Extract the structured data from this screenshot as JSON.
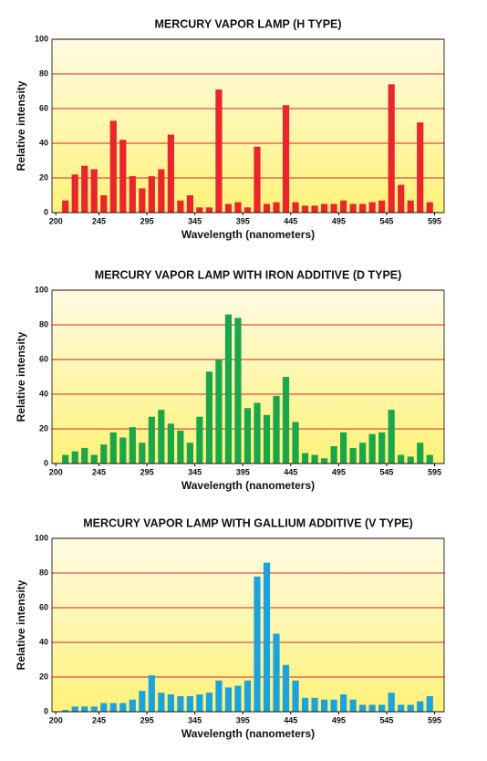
{
  "chart_data": [
    {
      "type": "bar",
      "title": "MERCURY VAPOR LAMP (H TYPE)",
      "xlabel": "Wavelength  (nanometers)",
      "ylabel": "Relative intensity",
      "color": "#e8262b",
      "grid": true,
      "x": [
        210,
        220,
        230,
        240,
        250,
        260,
        270,
        280,
        290,
        300,
        310,
        320,
        330,
        340,
        350,
        360,
        370,
        380,
        390,
        400,
        410,
        420,
        430,
        440,
        450,
        460,
        470,
        480,
        490,
        500,
        510,
        520,
        530,
        540,
        550,
        560,
        570,
        580,
        590
      ],
      "values": [
        7,
        22,
        27,
        25,
        10,
        53,
        42,
        21,
        14,
        21,
        25,
        45,
        7,
        10,
        3,
        3,
        71,
        5,
        6,
        3,
        38,
        5,
        6,
        62,
        6,
        4,
        4,
        5,
        5,
        7,
        5,
        5,
        6,
        7,
        74,
        16,
        7,
        52,
        6
      ],
      "xlim": [
        196,
        605
      ],
      "xticks": [
        200,
        245,
        295,
        345,
        395,
        445,
        495,
        545,
        595
      ],
      "ylim": [
        0,
        100
      ],
      "yticks": [
        0,
        20,
        40,
        60,
        80,
        100
      ]
    },
    {
      "type": "bar",
      "title": "MERCURY VAPOR LAMP WITH IRON ADDITIVE (D TYPE)",
      "xlabel": "Wavelength  (nanometers)",
      "ylabel": "Relative intensity",
      "color": "#1aa64a",
      "grid": true,
      "x": [
        210,
        220,
        230,
        240,
        250,
        260,
        270,
        280,
        290,
        300,
        310,
        320,
        330,
        340,
        350,
        360,
        370,
        380,
        390,
        400,
        410,
        420,
        430,
        440,
        450,
        460,
        470,
        480,
        490,
        500,
        510,
        520,
        530,
        540,
        550,
        560,
        570,
        580,
        590
      ],
      "values": [
        5,
        7,
        9,
        5,
        11,
        18,
        15,
        21,
        12,
        27,
        31,
        23,
        19,
        12,
        27,
        53,
        60,
        86,
        84,
        32,
        35,
        28,
        39,
        50,
        24,
        6,
        5,
        3,
        10,
        18,
        9,
        12,
        17,
        18,
        31,
        5,
        4,
        12,
        5
      ],
      "xlim": [
        196,
        605
      ],
      "xticks": [
        200,
        245,
        295,
        345,
        395,
        445,
        495,
        545,
        595
      ],
      "ylim": [
        0,
        100
      ],
      "yticks": [
        0,
        20,
        40,
        60,
        80,
        100
      ]
    },
    {
      "type": "bar",
      "title": "MERCURY VAPOR LAMP WITH GALLIUM ADDITIVE (V TYPE)",
      "xlabel": "Wavelength  (nanometers)",
      "ylabel": "Relative intensity",
      "color": "#1ca3dc",
      "grid": true,
      "x": [
        210,
        220,
        230,
        240,
        250,
        260,
        270,
        280,
        290,
        300,
        310,
        320,
        330,
        340,
        350,
        360,
        370,
        380,
        390,
        400,
        410,
        420,
        430,
        440,
        450,
        460,
        470,
        480,
        490,
        500,
        510,
        520,
        530,
        540,
        550,
        560,
        570,
        580,
        590
      ],
      "values": [
        1,
        3,
        3,
        3,
        5,
        5,
        5,
        7,
        12,
        21,
        11,
        10,
        9,
        9,
        10,
        11,
        18,
        14,
        15,
        18,
        78,
        86,
        45,
        27,
        18,
        8,
        8,
        7,
        7,
        10,
        7,
        4,
        4,
        4,
        11,
        4,
        4,
        6,
        9
      ],
      "xlim": [
        196,
        605
      ],
      "xticks": [
        200,
        245,
        295,
        345,
        395,
        445,
        495,
        545,
        595
      ],
      "ylim": [
        0,
        100
      ],
      "yticks": [
        0,
        20,
        40,
        60,
        80,
        100
      ]
    }
  ]
}
